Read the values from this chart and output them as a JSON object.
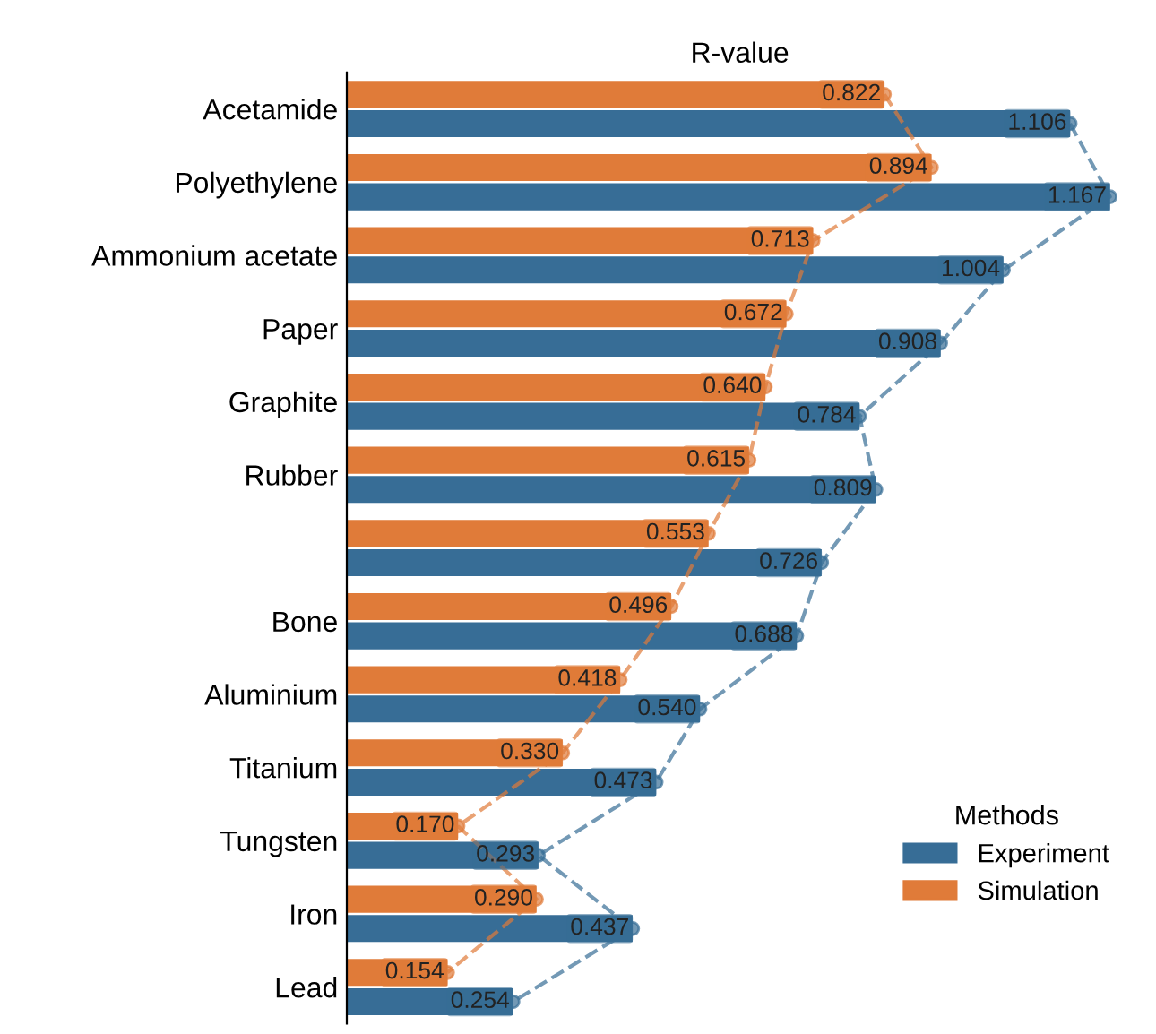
{
  "chart_data": {
    "type": "bar",
    "orientation": "horizontal",
    "title": "R-value",
    "categories": [
      "Acetamide",
      "Polyethylene",
      "Ammonium acetate",
      "Paper",
      "Graphite",
      "Rubber",
      null,
      "Bone",
      "Aluminium",
      "Titanium",
      "Tungsten",
      "Iron",
      "Lead"
    ],
    "series": [
      {
        "name": "Simulation",
        "color": "#e07b39",
        "values": [
          0.822,
          0.894,
          0.713,
          0.672,
          0.64,
          0.615,
          0.553,
          0.496,
          0.418,
          0.33,
          0.17,
          0.29,
          0.154
        ],
        "value_labels": [
          "0.822",
          "0.894",
          "0.713",
          "0.672",
          "0.640",
          "0.615",
          "0.553",
          "0.496",
          "0.418",
          "0.330",
          "0.170",
          "0.290",
          "0.154"
        ]
      },
      {
        "name": "Experiment",
        "color": "#376d96",
        "values": [
          1.106,
          1.167,
          1.004,
          0.908,
          0.784,
          0.809,
          0.726,
          0.688,
          0.54,
          0.473,
          0.293,
          0.437,
          0.254
        ],
        "value_labels": [
          "1.106",
          "1.167",
          "1.004",
          "0.908",
          "0.784",
          "0.809",
          "0.726",
          "0.688",
          "0.540",
          "0.473",
          "0.293",
          "0.437",
          "0.254"
        ]
      },
      {
        "type": "line",
        "color": "#e07b39",
        "values": [
          0.822,
          0.894,
          0.713,
          0.672,
          0.64,
          0.615,
          0.553,
          0.496,
          0.418,
          0.33,
          0.17,
          0.29,
          0.154
        ]
      },
      {
        "type": "line",
        "color": "#376d96",
        "values": [
          1.106,
          1.167,
          1.004,
          0.908,
          0.784,
          0.809,
          0.726,
          0.688,
          0.54,
          0.473,
          0.293,
          0.437,
          0.254
        ]
      }
    ],
    "legend_title": "Methods",
    "legend": "bottom right",
    "marker": "circle",
    "line_style": "dashed",
    "tick_labels": "y"
  }
}
